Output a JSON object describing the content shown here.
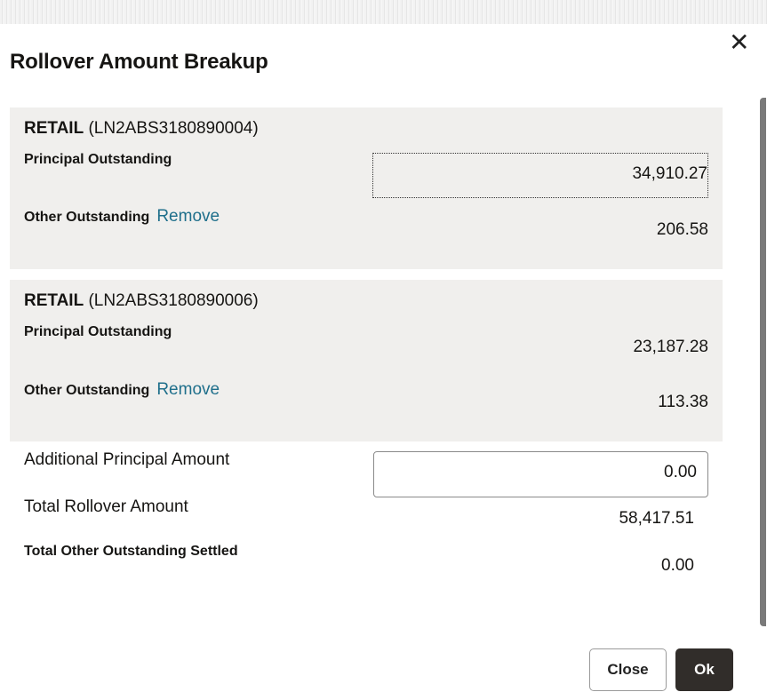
{
  "dialog": {
    "title": "Rollover Amount Breakup",
    "close_icon": "close-icon"
  },
  "loans": [
    {
      "type": "RETAIL",
      "id": "(LN2ABS3180890004)",
      "principal_label": "Principal Outstanding",
      "principal": "34,910.27",
      "other_label": "Other Outstanding",
      "remove_label": "Remove",
      "other": "206.58"
    },
    {
      "type": "RETAIL",
      "id": "(LN2ABS3180890006)",
      "principal_label": "Principal Outstanding",
      "principal": "23,187.28",
      "other_label": "Other Outstanding",
      "remove_label": "Remove",
      "other": "113.38"
    }
  ],
  "summary": {
    "additional_label": "Additional Principal Amount",
    "additional_value": "0.00",
    "total_label": "Total Rollover Amount",
    "total_value": "58,417.51",
    "settled_label": "Total Other Outstanding Settled",
    "settled_value": "0.00"
  },
  "buttons": {
    "close": "Close",
    "ok": "Ok"
  }
}
